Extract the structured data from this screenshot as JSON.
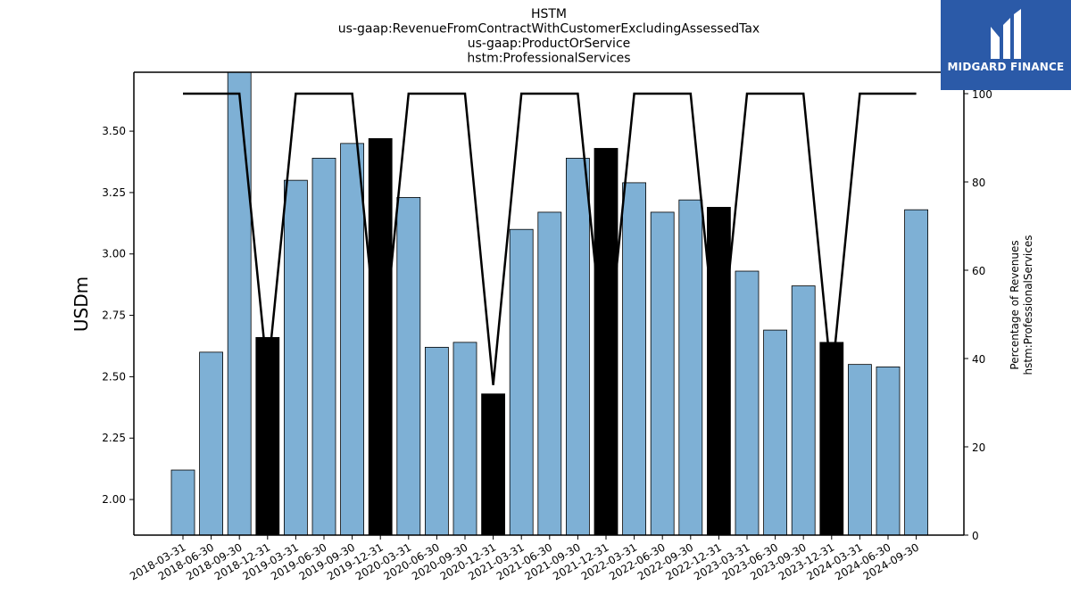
{
  "chart_data": {
    "type": "bar",
    "title_lines": [
      "HSTM",
      "us-gaap:RevenueFromContractWithCustomerExcludingAssessedTax",
      "us-gaap:ProductOrService",
      "hstm:ProfessionalServices"
    ],
    "ylabel": "USDm",
    "ylabel_right": [
      "Percentage of Revenues",
      "hstm:ProfessionalServices"
    ],
    "categories": [
      "2018-03-31",
      "2018-06-30",
      "2018-09-30",
      "2018-12-31",
      "2019-03-31",
      "2019-06-30",
      "2019-09-30",
      "2019-12-31",
      "2020-03-31",
      "2020-06-30",
      "2020-09-30",
      "2020-12-31",
      "2021-03-31",
      "2021-06-30",
      "2021-09-30",
      "2021-12-31",
      "2022-03-31",
      "2022-06-30",
      "2022-09-30",
      "2022-12-31",
      "2023-03-31",
      "2023-06-30",
      "2023-09-30",
      "2023-12-31",
      "2024-03-31",
      "2024-06-30",
      "2024-09-30"
    ],
    "values": [
      2.12,
      2.6,
      3.74,
      2.66,
      3.3,
      3.39,
      3.45,
      3.47,
      3.23,
      2.62,
      2.64,
      2.43,
      3.1,
      3.17,
      3.39,
      3.43,
      3.29,
      3.17,
      3.22,
      3.19,
      2.93,
      2.69,
      2.87,
      2.64,
      2.55,
      2.54,
      3.18
    ],
    "highlight": [
      false,
      false,
      false,
      true,
      false,
      false,
      false,
      true,
      false,
      false,
      false,
      true,
      false,
      false,
      false,
      true,
      false,
      false,
      false,
      true,
      false,
      false,
      false,
      true,
      false,
      false,
      false
    ],
    "percentages": [
      100,
      100,
      100,
      36,
      100,
      100,
      100,
      36,
      100,
      100,
      100,
      34,
      100,
      100,
      100,
      37,
      100,
      100,
      100,
      36,
      100,
      100,
      100,
      35,
      100,
      100,
      100
    ],
    "ylim": [
      1.855,
      3.74
    ],
    "yticks": [
      "2.00",
      "2.25",
      "2.50",
      "2.75",
      "3.00",
      "3.25",
      "3.50"
    ],
    "ylim_right": [
      0,
      100
    ],
    "yticks_right": [
      "0",
      "20",
      "40",
      "60",
      "80",
      "100"
    ],
    "colors": {
      "bar": "#7eb0d5",
      "highlight": "#000000",
      "line": "#000000"
    }
  },
  "logo": {
    "text": "MIDGARD FINANCE"
  }
}
